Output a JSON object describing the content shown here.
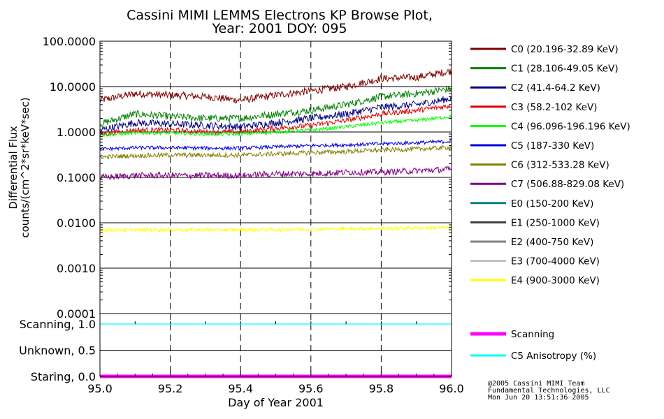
{
  "title": {
    "line1": "Cassini MIMI LEMMS Electrons KP Browse Plot,",
    "line2": "Year: 2001 DOY: 095"
  },
  "footer": {
    "line1": "@2005 Cassini MIMI Team",
    "line2": "Fundamental Technologies, LLC",
    "line3": "Mon Jun 20 13:51:36 2005"
  },
  "chart_data": {
    "type": "line",
    "xlabel": "Day of Year 2001",
    "xlim": [
      95.0,
      96.0
    ],
    "x_ticks": [
      "95.0",
      "95.2",
      "95.4",
      "95.6",
      "95.8",
      "96.0"
    ],
    "x_tick_values": [
      95.0,
      95.2,
      95.4,
      95.6,
      95.8,
      96.0
    ],
    "flux_panel": {
      "ylabel_line1": "Differential Flux",
      "ylabel_line2": "counts/(cm^2*sr*keV*sec)",
      "yscale": "log",
      "ylim": [
        0.0001,
        100
      ],
      "y_ticks": [
        "100.0000",
        "10.0000",
        "1.0000",
        "0.1000",
        "0.0100",
        "0.0010",
        "0.0001"
      ],
      "y_tick_values": [
        100,
        10,
        1,
        0.1,
        0.01,
        0.001,
        0.0001
      ],
      "grid": "horizontal solid, vertical dashed"
    },
    "mode_panel": {
      "y_ticks": [
        "Scanning, 1.0",
        "Unknown, 0.5",
        "Staring, 0.0"
      ],
      "y_tick_values": [
        1.0,
        0.5,
        0.0
      ],
      "ylim": [
        0,
        1.2
      ]
    },
    "series": [
      {
        "name": "C0 (20.196-32.89 KeV)",
        "color": "#800000",
        "x": [
          95.0,
          95.1,
          95.2,
          95.3,
          95.4,
          95.5,
          95.6,
          95.7,
          95.8,
          95.9,
          96.0
        ],
        "values": [
          5.0,
          7.0,
          6.5,
          6.0,
          5.0,
          6.5,
          8.0,
          10.0,
          15.0,
          16.0,
          22.0
        ],
        "noise": 0.08
      },
      {
        "name": "C1 (28.106-49.05 KeV)",
        "color": "#008000",
        "x": [
          95.0,
          95.1,
          95.2,
          95.3,
          95.4,
          95.5,
          95.6,
          95.7,
          95.8,
          95.9,
          96.0
        ],
        "values": [
          1.5,
          2.5,
          2.2,
          2.0,
          2.0,
          2.5,
          3.0,
          4.0,
          6.0,
          7.0,
          9.0
        ],
        "noise": 0.08
      },
      {
        "name": "C2 (41.4-64.2 KeV)",
        "color": "#000080",
        "x": [
          95.0,
          95.1,
          95.2,
          95.3,
          95.4,
          95.5,
          95.6,
          95.7,
          95.8,
          95.9,
          96.0
        ],
        "values": [
          1.1,
          1.6,
          1.5,
          1.4,
          1.3,
          1.6,
          2.0,
          2.5,
          3.5,
          4.0,
          5.5
        ],
        "noise": 0.08
      },
      {
        "name": "C3 (58.2-102 KeV)",
        "color": "#e00000",
        "x": [
          95.0,
          95.1,
          95.2,
          95.3,
          95.4,
          95.5,
          95.6,
          95.7,
          95.8,
          95.9,
          96.0
        ],
        "values": [
          0.9,
          1.1,
          1.1,
          1.0,
          1.0,
          1.2,
          1.4,
          1.8,
          2.5,
          3.0,
          3.8
        ],
        "noise": 0.06
      },
      {
        "name": "C4 (96.096-196.196 KeV)",
        "color": "#00ff00",
        "x": [
          95.0,
          95.1,
          95.2,
          95.3,
          95.4,
          95.5,
          95.6,
          95.7,
          95.8,
          95.9,
          96.0
        ],
        "values": [
          0.85,
          0.95,
          0.95,
          0.9,
          0.9,
          1.0,
          1.1,
          1.3,
          1.6,
          1.8,
          2.2
        ],
        "noise": 0.04
      },
      {
        "name": "C5 (187-330 KeV)",
        "color": "#0000e0",
        "x": [
          95.0,
          95.1,
          95.2,
          95.3,
          95.4,
          95.5,
          95.6,
          95.7,
          95.8,
          95.9,
          96.0
        ],
        "values": [
          0.42,
          0.45,
          0.45,
          0.44,
          0.44,
          0.47,
          0.5,
          0.52,
          0.55,
          0.58,
          0.62
        ],
        "noise": 0.04
      },
      {
        "name": "C6 (312-533.28 KeV)",
        "color": "#808000",
        "x": [
          95.0,
          95.1,
          95.2,
          95.3,
          95.4,
          95.5,
          95.6,
          95.7,
          95.8,
          95.9,
          96.0
        ],
        "values": [
          0.28,
          0.3,
          0.31,
          0.31,
          0.31,
          0.33,
          0.35,
          0.37,
          0.4,
          0.42,
          0.46
        ],
        "noise": 0.05
      },
      {
        "name": "C7 (506.88-829.08 KeV)",
        "color": "#800080",
        "x": [
          95.0,
          95.1,
          95.2,
          95.3,
          95.4,
          95.5,
          95.6,
          95.7,
          95.8,
          95.9,
          96.0
        ],
        "values": [
          0.1,
          0.11,
          0.11,
          0.11,
          0.11,
          0.12,
          0.12,
          0.13,
          0.13,
          0.14,
          0.15
        ],
        "noise": 0.07
      },
      {
        "name": "E0 (150-200 KeV)",
        "color": "#008080",
        "x": [],
        "values": []
      },
      {
        "name": "E1 (250-1000 KeV)",
        "color": "#404040",
        "x": [],
        "values": []
      },
      {
        "name": "E2 (400-750 KeV)",
        "color": "#808080",
        "x": [],
        "values": []
      },
      {
        "name": "E3 (700-4000 KeV)",
        "color": "#c0c0c0",
        "x": [],
        "values": []
      },
      {
        "name": "E4 (900-3000 KeV)",
        "color": "#ffff00",
        "x": [
          95.0,
          95.2,
          95.4,
          95.6,
          95.8,
          96.0
        ],
        "values": [
          0.007,
          0.007,
          0.007,
          0.0072,
          0.0075,
          0.0078
        ],
        "noise": 0.04
      }
    ],
    "mode_series": [
      {
        "name": "Scanning",
        "color": "#ff00ff",
        "x": [
          95.0,
          96.0
        ],
        "values": [
          0.0,
          0.0
        ]
      },
      {
        "name": "C5 Anisotropy (%)",
        "color": "#00ffff",
        "x": [
          95.0,
          96.0
        ],
        "values": [
          1.0,
          1.0
        ]
      }
    ]
  }
}
